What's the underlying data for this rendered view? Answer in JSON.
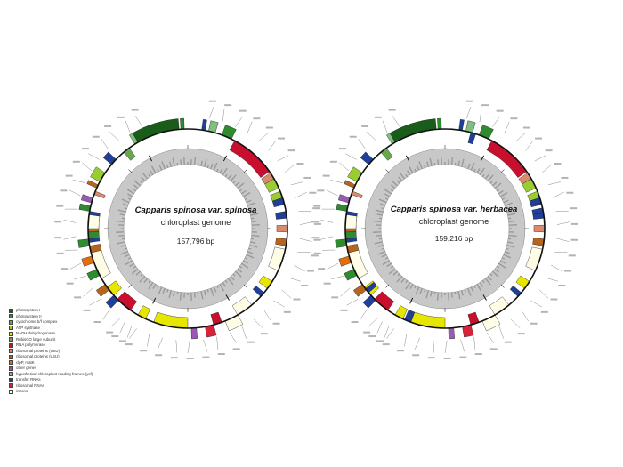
{
  "maps": [
    {
      "name_line1": "Capparis spinosa var. spinosa",
      "name_line2": "chloroplast genome",
      "length": "157,796 bp"
    },
    {
      "name_line1": "Capparis  spinosa  var.  herbacea",
      "name_line2": "chloroplast genome",
      "length": "159,216 bp"
    }
  ],
  "legend": {
    "items": [
      {
        "label": "photosystem I",
        "color": "#1a5c1a"
      },
      {
        "label": "photosystem II",
        "color": "#2e8b2e"
      },
      {
        "label": "cytochrome b/f complex",
        "color": "#6aa84f"
      },
      {
        "label": "ATP synthase",
        "color": "#9acd32"
      },
      {
        "label": "NADH dehydrogenase",
        "color": "#e6e600"
      },
      {
        "label": "RubisCO large subunit",
        "color": "#7fa23a"
      },
      {
        "label": "RNA polymerase",
        "color": "#c8102e"
      },
      {
        "label": "ribosomal proteins (SSU)",
        "color": "#d98c6c"
      },
      {
        "label": "ribosomal proteins (LSU)",
        "color": "#b5651d"
      },
      {
        "label": "clpP, matK",
        "color": "#e46c0a"
      },
      {
        "label": "other genes",
        "color": "#9b59b6"
      },
      {
        "label": "hypothetical chloroplast reading frames (ycf)",
        "color": "#7fbf7f"
      },
      {
        "label": "transfer RNAs",
        "color": "#1f3f99"
      },
      {
        "label": "ribosomal RNAs",
        "color": "#d9213a"
      },
      {
        "label": "introns",
        "color": "#fffde6"
      }
    ]
  }
}
